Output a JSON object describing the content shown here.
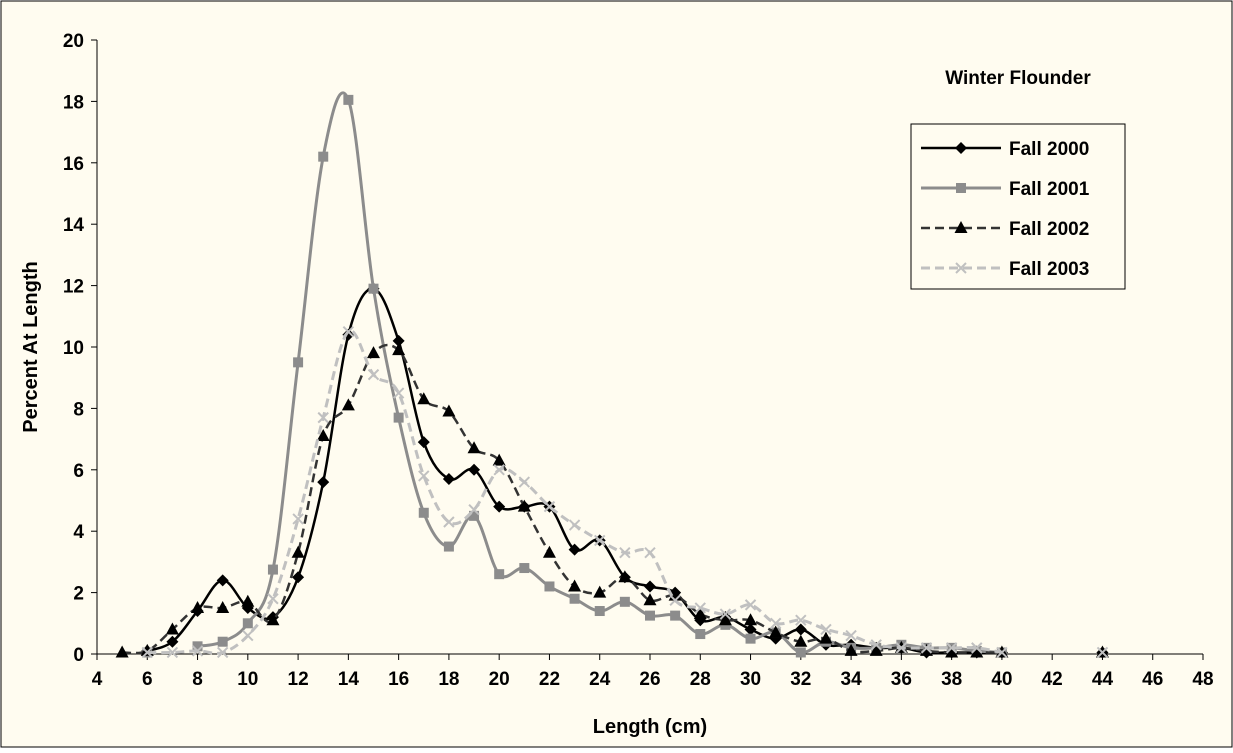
{
  "chart_data": {
    "type": "line",
    "title": "Winter Flounder",
    "xlabel": "Length (cm)",
    "ylabel": "Percent At Length",
    "xlim": [
      4,
      48
    ],
    "ylim": [
      0,
      20
    ],
    "x_ticks": [
      4,
      6,
      8,
      10,
      12,
      14,
      16,
      18,
      20,
      22,
      24,
      26,
      28,
      30,
      32,
      34,
      36,
      38,
      40,
      42,
      44,
      46,
      48
    ],
    "y_ticks": [
      0,
      2,
      4,
      6,
      8,
      10,
      12,
      14,
      16,
      18,
      20
    ],
    "grid": false,
    "legend_position": "top-right",
    "background_color": "#fffcf0",
    "series": [
      {
        "name": "Fall 2000",
        "color": "#000000",
        "dash": "solid",
        "marker": "diamond",
        "points": [
          [
            6,
            0.1
          ],
          [
            7,
            0.4
          ],
          [
            8,
            1.4
          ],
          [
            9,
            2.4
          ],
          [
            10,
            1.5
          ],
          [
            11,
            1.2
          ],
          [
            12,
            2.5
          ],
          [
            13,
            5.6
          ],
          [
            14,
            10.4
          ],
          [
            15,
            11.9
          ],
          [
            16,
            10.2
          ],
          [
            17,
            6.9
          ],
          [
            18,
            5.7
          ],
          [
            19,
            6.0
          ],
          [
            20,
            4.8
          ],
          [
            21,
            4.8
          ],
          [
            22,
            4.8
          ],
          [
            23,
            3.4
          ],
          [
            24,
            3.7
          ],
          [
            25,
            2.5
          ],
          [
            26,
            2.2
          ],
          [
            27,
            2.0
          ],
          [
            28,
            1.1
          ],
          [
            29,
            1.2
          ],
          [
            30,
            0.8
          ],
          [
            31,
            0.5
          ],
          [
            32,
            0.8
          ],
          [
            33,
            0.3
          ],
          [
            34,
            0.3
          ],
          [
            35,
            0.2
          ],
          [
            36,
            0.2
          ],
          [
            37,
            0.05
          ],
          [
            38,
            0.05
          ],
          [
            39,
            0.05
          ],
          [
            40,
            0.05
          ],
          [
            44,
            0.05
          ]
        ]
      },
      {
        "name": "Fall 2001",
        "color": "#8c8c8c",
        "dash": "solid",
        "marker": "square",
        "points": [
          [
            6,
            0.05
          ],
          [
            8,
            0.25
          ],
          [
            9,
            0.4
          ],
          [
            10,
            1.0
          ],
          [
            11,
            2.75
          ],
          [
            12,
            9.5
          ],
          [
            13,
            16.2
          ],
          [
            14,
            18.05
          ],
          [
            15,
            11.9
          ],
          [
            16,
            7.7
          ],
          [
            17,
            4.6
          ],
          [
            18,
            3.5
          ],
          [
            19,
            4.5
          ],
          [
            20,
            2.6
          ],
          [
            21,
            2.8
          ],
          [
            22,
            2.2
          ],
          [
            23,
            1.8
          ],
          [
            24,
            1.4
          ],
          [
            25,
            1.7
          ],
          [
            26,
            1.25
          ],
          [
            27,
            1.25
          ],
          [
            28,
            0.65
          ],
          [
            29,
            0.95
          ],
          [
            30,
            0.5
          ],
          [
            31,
            0.7
          ],
          [
            32,
            0.05
          ],
          [
            33,
            0.4
          ],
          [
            34,
            0.2
          ],
          [
            35,
            0.2
          ],
          [
            36,
            0.3
          ],
          [
            37,
            0.2
          ],
          [
            38,
            0.2
          ],
          [
            39,
            0.1
          ],
          [
            40,
            0.05
          ]
        ]
      },
      {
        "name": "Fall 2002",
        "color": "#333333",
        "dash": "dashed",
        "marker": "triangle",
        "points": [
          [
            5,
            0.05
          ],
          [
            6,
            0.1
          ],
          [
            7,
            0.8
          ],
          [
            8,
            1.5
          ],
          [
            9,
            1.5
          ],
          [
            10,
            1.7
          ],
          [
            11,
            1.1
          ],
          [
            12,
            3.3
          ],
          [
            13,
            7.1
          ],
          [
            14,
            8.1
          ],
          [
            15,
            9.8
          ],
          [
            16,
            9.9
          ],
          [
            17,
            8.3
          ],
          [
            18,
            7.9
          ],
          [
            19,
            6.7
          ],
          [
            20,
            6.3
          ],
          [
            21,
            4.8
          ],
          [
            22,
            3.3
          ],
          [
            23,
            2.2
          ],
          [
            24,
            2.0
          ],
          [
            25,
            2.5
          ],
          [
            26,
            1.75
          ],
          [
            27,
            1.9
          ],
          [
            28,
            1.3
          ],
          [
            29,
            1.1
          ],
          [
            30,
            1.1
          ],
          [
            31,
            0.7
          ],
          [
            32,
            0.4
          ],
          [
            33,
            0.5
          ],
          [
            34,
            0.1
          ],
          [
            35,
            0.1
          ],
          [
            36,
            0.2
          ],
          [
            37,
            0.1
          ],
          [
            38,
            0.05
          ],
          [
            39,
            0.05
          ],
          [
            40,
            0.05
          ],
          [
            44,
            0.05
          ]
        ]
      },
      {
        "name": "Fall 2003",
        "color": "#c0c0c0",
        "dash": "dashed",
        "marker": "x",
        "points": [
          [
            6,
            0.05
          ],
          [
            7,
            0.05
          ],
          [
            8,
            0.1
          ],
          [
            9,
            0.05
          ],
          [
            10,
            0.6
          ],
          [
            11,
            1.8
          ],
          [
            12,
            4.4
          ],
          [
            13,
            7.7
          ],
          [
            14,
            10.5
          ],
          [
            15,
            9.1
          ],
          [
            16,
            8.5
          ],
          [
            17,
            5.8
          ],
          [
            18,
            4.3
          ],
          [
            19,
            4.7
          ],
          [
            20,
            6.0
          ],
          [
            21,
            5.6
          ],
          [
            22,
            4.8
          ],
          [
            23,
            4.2
          ],
          [
            24,
            3.7
          ],
          [
            25,
            3.3
          ],
          [
            26,
            3.3
          ],
          [
            27,
            1.75
          ],
          [
            28,
            1.5
          ],
          [
            29,
            1.3
          ],
          [
            30,
            1.6
          ],
          [
            31,
            1.0
          ],
          [
            32,
            1.1
          ],
          [
            33,
            0.8
          ],
          [
            34,
            0.6
          ],
          [
            35,
            0.3
          ],
          [
            36,
            0.2
          ],
          [
            37,
            0.2
          ],
          [
            38,
            0.2
          ],
          [
            39,
            0.2
          ],
          [
            40,
            0.05
          ],
          [
            44,
            0.05
          ]
        ]
      }
    ]
  }
}
